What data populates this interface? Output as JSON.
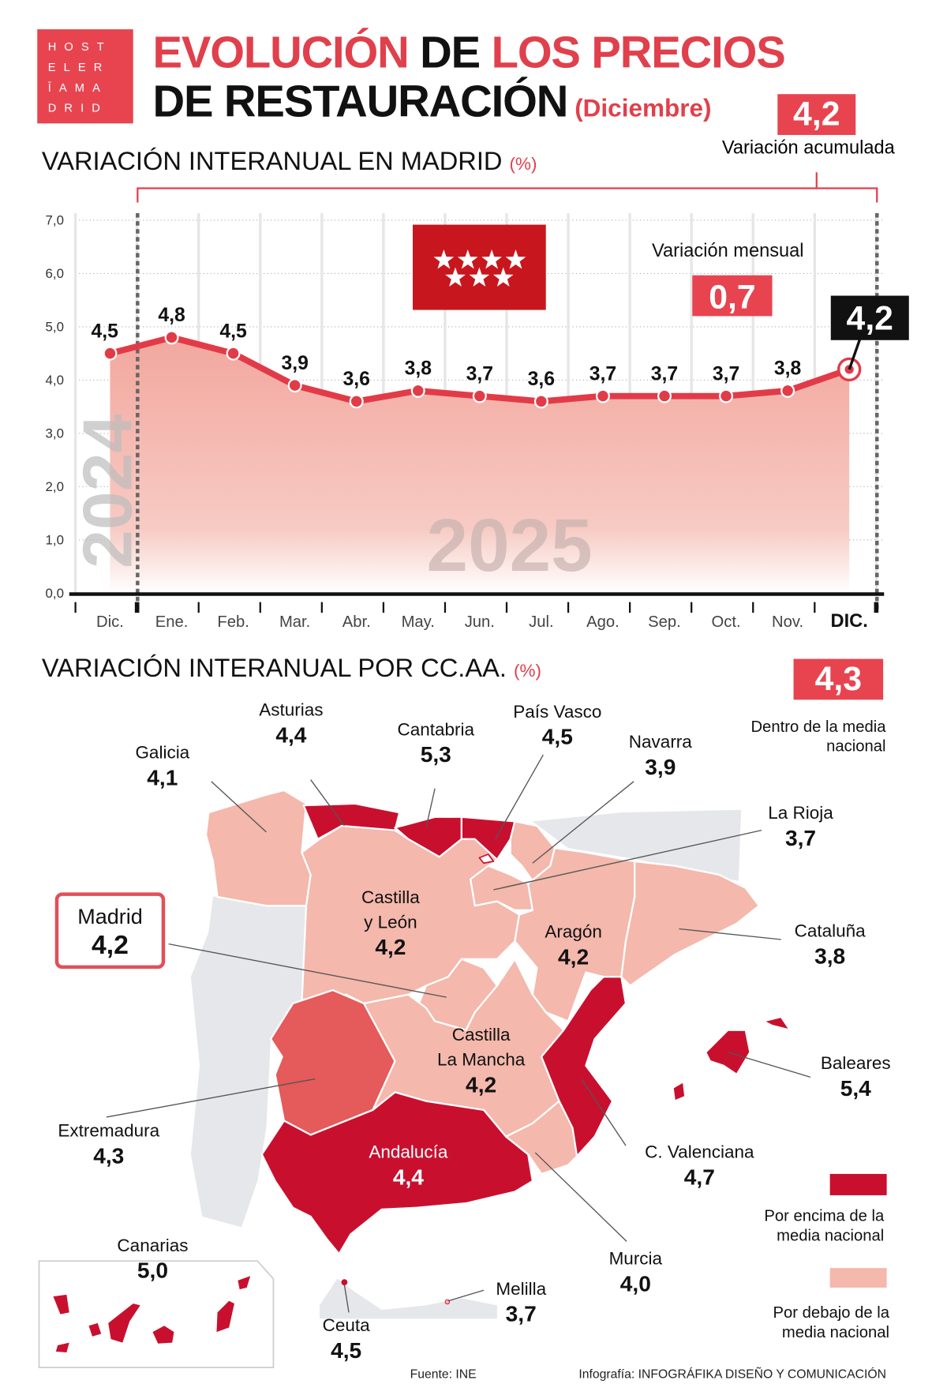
{
  "logo": {
    "lines": [
      "HOST",
      "ELER",
      "ĪAMA",
      "DRID"
    ]
  },
  "title": {
    "part1_red": "EVOLUCIÓN",
    "part1_black": "DE",
    "part1_red2": "LOS PRECIOS",
    "line2": "DE RESTAURACIÓN",
    "month": "(Diciembre)"
  },
  "madrid_section": {
    "heading": "VARIACIÓN INTERANUAL EN MADRID",
    "unit": "(%)",
    "accumulated_value": "4,2",
    "accumulated_label": "Variación acumulada",
    "monthly_label": "Variación mensual",
    "monthly_value": "0,7",
    "year_prev": "2024",
    "year_curr": "2025"
  },
  "chart_data": {
    "type": "line",
    "categories": [
      "Dic.",
      "Ene.",
      "Feb.",
      "Mar.",
      "Abr.",
      "May.",
      "Jun.",
      "Jul.",
      "Ago.",
      "Sep.",
      "Oct.",
      "Nov.",
      "DIC."
    ],
    "values": [
      4.5,
      4.8,
      4.5,
      3.9,
      3.6,
      3.8,
      3.7,
      3.6,
      3.7,
      3.7,
      3.7,
      3.8,
      4.2
    ],
    "value_labels": [
      "4,5",
      "4,8",
      "4,5",
      "3,9",
      "3,6",
      "3,8",
      "3,7",
      "3,6",
      "3,7",
      "3,7",
      "3,7",
      "3,8",
      "4,2"
    ],
    "yticks": [
      "0,0",
      "1,0",
      "2,0",
      "3,0",
      "4,0",
      "5,0",
      "6,0",
      "7,0"
    ],
    "ylim": [
      0,
      7
    ],
    "grid": true,
    "colors": {
      "line": "#e23b48",
      "fill": "#f2a79e",
      "highlight_box": "#111111"
    }
  },
  "ccaa_section": {
    "heading": "VARIACIÓN INTERANUAL POR CC.AA.",
    "unit": "(%)",
    "national_value": "4,3",
    "national_label": "Dentro de la media nacional",
    "legend": [
      {
        "label": "Por encima de la media nacional",
        "color": "#c8102e"
      },
      {
        "label": "Por debajo de la media nacional",
        "color": "#f4b8ac"
      }
    ],
    "regions": [
      {
        "name": "Galicia",
        "value": "4,1"
      },
      {
        "name": "Asturias",
        "value": "4,4"
      },
      {
        "name": "Cantabria",
        "value": "5,3"
      },
      {
        "name": "País Vasco",
        "value": "4,5"
      },
      {
        "name": "Navarra",
        "value": "3,9"
      },
      {
        "name": "La Rioja",
        "value": "3,7"
      },
      {
        "name": "Cataluña",
        "value": "3,8"
      },
      {
        "name": "Madrid",
        "value": "4,2"
      },
      {
        "name": "Castilla y León",
        "value": "4,2"
      },
      {
        "name": "Aragón",
        "value": "4,2"
      },
      {
        "name": "Castilla La Mancha",
        "value": "4,2"
      },
      {
        "name": "Extremadura",
        "value": "4,3"
      },
      {
        "name": "Andalucía",
        "value": "4,4"
      },
      {
        "name": "C. Valenciana",
        "value": "4,7"
      },
      {
        "name": "Murcia",
        "value": "4,0"
      },
      {
        "name": "Baleares",
        "value": "5,4"
      },
      {
        "name": "Canarias",
        "value": "5,0"
      },
      {
        "name": "Ceuta",
        "value": "4,5"
      },
      {
        "name": "Melilla",
        "value": "3,7"
      }
    ],
    "castilla_leon_lines": [
      "Castilla",
      "y León"
    ],
    "clm_lines": [
      "Castilla",
      "La Mancha"
    ]
  },
  "footer": {
    "source": "Fuente: INE",
    "credit_prefix": "Infografía:",
    "credit": "INFOGRÁFIKA DISEÑO Y COMUNICACIÓN"
  }
}
